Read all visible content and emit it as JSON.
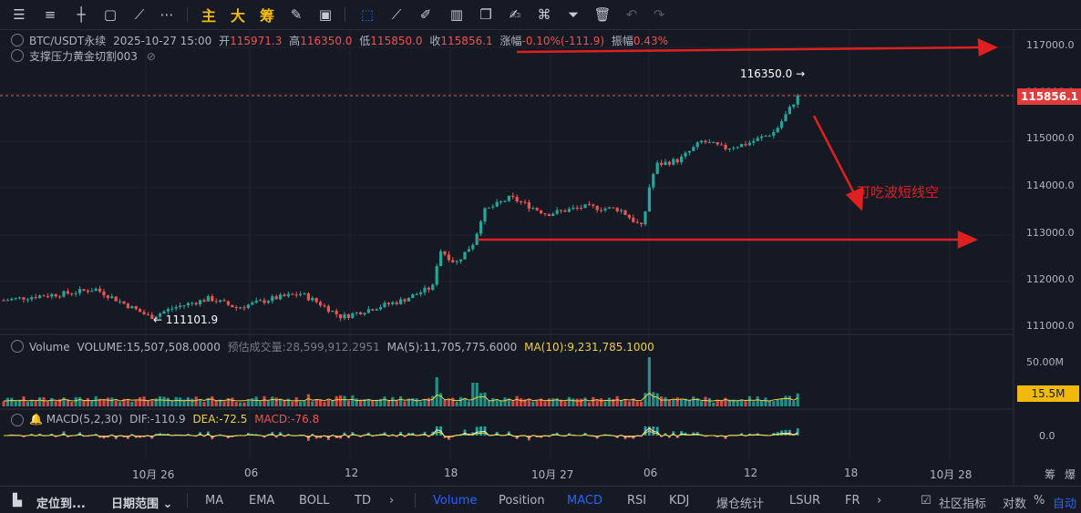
{
  "toolbar": {
    "cn_buttons": [
      "主",
      "大",
      "筹"
    ]
  },
  "legend": {
    "symbol": "BTC/USDT永续",
    "date": "2025-10-27 15:00",
    "open_label": "开",
    "open": "115971.3",
    "high_label": "高",
    "high": "116350.0",
    "low_label": "低",
    "low": "115850.0",
    "close_label": "收",
    "close": "115856.1",
    "change_label": "涨幅",
    "change": "-0.10%(-111.9)",
    "amp_label": "振幅",
    "amp": "0.43%",
    "indicator": "支撑压力黄金切割003"
  },
  "volume_legend": {
    "name": "Volume",
    "volume": "VOLUME:15,507,508.0000",
    "est": "预估成交量:28,599,912.2951",
    "ma5": "MA(5):11,705,775.6000",
    "ma10": "MA(10):9,231,785.1000"
  },
  "macd_legend": {
    "name": "MACD(5,2,30)",
    "dif": "DIF:-110.9",
    "dea": "DEA:-72.5",
    "macd": "MACD:-76.8"
  },
  "y_axis": [
    "117000.0",
    "116000.0",
    "115000.0",
    "114000.0",
    "113000.0",
    "112000.0",
    "111000.0"
  ],
  "volume_axis": [
    "50.00M"
  ],
  "macd_axis": [
    "0.0"
  ],
  "last_price_tag": "115856.1",
  "volume_tag": "15.5M",
  "high_annotation": "116350.0",
  "low_annotation": "111101.9",
  "note": "可吃波短线空",
  "x_axis": [
    "10月 26",
    "06",
    "12",
    "18",
    "10月 27",
    "06",
    "12",
    "18",
    "10月 28"
  ],
  "x_axis_right": [
    "筹",
    "爆"
  ],
  "bottom_bar": {
    "locate": "定位到...",
    "range": "日期范围",
    "indicators": [
      "MA",
      "EMA",
      "BOLL",
      "TD"
    ],
    "subs": [
      "Volume",
      "Position",
      "MACD",
      "RSI",
      "KDJ",
      "爆仓统计",
      "LSUR",
      "FR"
    ],
    "community": "社区指标",
    "log": "对数",
    "pct": "%",
    "auto": "自动"
  },
  "colors": {
    "up": "#26a69a",
    "down": "#ef5350",
    "arrow": "#e02020",
    "accent": "#2962ff",
    "ma10": "#f0d040"
  }
}
